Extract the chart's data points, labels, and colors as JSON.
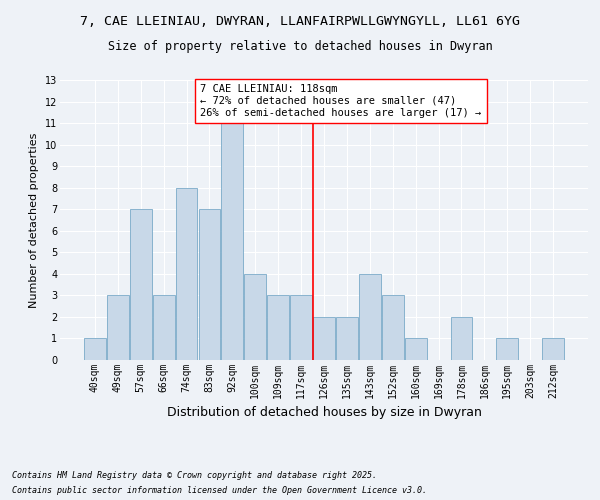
{
  "title_line1": "7, CAE LLEINIAU, DWYRAN, LLANFAIRPWLLGWYNGYLL, LL61 6YG",
  "title_line2": "Size of property relative to detached houses in Dwyran",
  "xlabel": "Distribution of detached houses by size in Dwyran",
  "ylabel": "Number of detached properties",
  "bins": [
    "40sqm",
    "49sqm",
    "57sqm",
    "66sqm",
    "74sqm",
    "83sqm",
    "92sqm",
    "100sqm",
    "109sqm",
    "117sqm",
    "126sqm",
    "135sqm",
    "143sqm",
    "152sqm",
    "160sqm",
    "169sqm",
    "178sqm",
    "186sqm",
    "195sqm",
    "203sqm",
    "212sqm"
  ],
  "values": [
    1,
    3,
    7,
    3,
    8,
    7,
    11,
    4,
    3,
    3,
    2,
    2,
    4,
    3,
    1,
    0,
    2,
    0,
    1,
    0,
    1
  ],
  "bar_color": "#c8d8e8",
  "bar_edge_color": "#7aaac8",
  "red_line_index": 9.5,
  "annotation_title": "7 CAE LLEINIAU: 118sqm",
  "annotation_line1": "← 72% of detached houses are smaller (47)",
  "annotation_line2": "26% of semi-detached houses are larger (17) →",
  "ylim": [
    0,
    13
  ],
  "yticks": [
    0,
    1,
    2,
    3,
    4,
    5,
    6,
    7,
    8,
    9,
    10,
    11,
    12,
    13
  ],
  "footer_line1": "Contains HM Land Registry data © Crown copyright and database right 2025.",
  "footer_line2": "Contains public sector information licensed under the Open Government Licence v3.0.",
  "bg_color": "#eef2f7",
  "grid_color": "#ffffff",
  "title_fontsize": 9.5,
  "subtitle_fontsize": 8.5,
  "axis_label_fontsize": 8,
  "tick_fontsize": 7,
  "annotation_fontsize": 7.5,
  "footer_fontsize": 6
}
